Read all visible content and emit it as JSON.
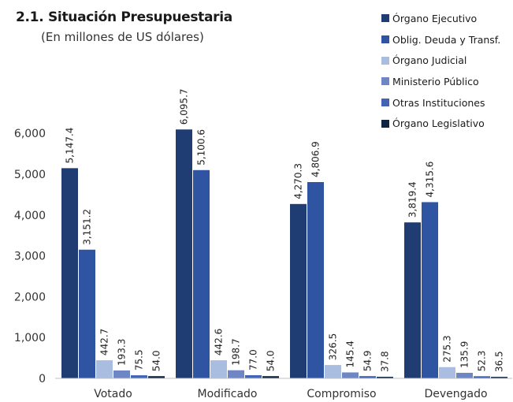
{
  "chart_data": {
    "type": "bar",
    "title": "2.1. Situación Presupuestaria",
    "subtitle": "(En millones de US dólares)",
    "categories": [
      "Votado",
      "Modificado",
      "Compromiso",
      "Devengado"
    ],
    "series": [
      {
        "name": "Órgano Ejecutivo",
        "color": "#1f3d73",
        "values": [
          5147.4,
          6095.7,
          4270.3,
          3819.4
        ],
        "labels": [
          "5,147.4",
          "6,095.7",
          "4,270.3",
          "3,819.4"
        ]
      },
      {
        "name": "Oblig. Deuda y Transf.",
        "color": "#2f55a2",
        "values": [
          3151.2,
          5100.6,
          4806.9,
          4315.6
        ],
        "labels": [
          "3,151.2",
          "5,100.6",
          "4,806.9",
          "4,315.6"
        ]
      },
      {
        "name": "Órgano Judicial",
        "color": "#a9bde0",
        "values": [
          442.7,
          442.6,
          326.5,
          275.3
        ],
        "labels": [
          "442.7",
          "442.6",
          "326.5",
          "275.3"
        ]
      },
      {
        "name": "Ministerio Público",
        "color": "#6f86c4",
        "values": [
          193.3,
          198.7,
          145.4,
          135.9
        ],
        "labels": [
          "193.3",
          "198.7",
          "145.4",
          "135.9"
        ]
      },
      {
        "name": "Otras Instituciones",
        "color": "#4164b3",
        "values": [
          75.5,
          77.0,
          54.9,
          52.3
        ],
        "labels": [
          "75.5",
          "77.0",
          "54.9",
          "52.3"
        ]
      },
      {
        "name": "Órgano Legislativo",
        "color": "#0f2340",
        "values": [
          54.0,
          54.0,
          37.8,
          36.5
        ],
        "labels": [
          "54.0",
          "54.0",
          "37.8",
          "36.5"
        ]
      }
    ],
    "ylim": [
      0,
      6500
    ],
    "yticks": [
      0,
      1000,
      2000,
      3000,
      4000,
      5000,
      6000
    ],
    "ytick_labels": [
      "0",
      "1,000",
      "2,000",
      "3,000",
      "4,000",
      "5,000",
      "6,000"
    ],
    "legend_position": "top-right",
    "grid": false
  }
}
